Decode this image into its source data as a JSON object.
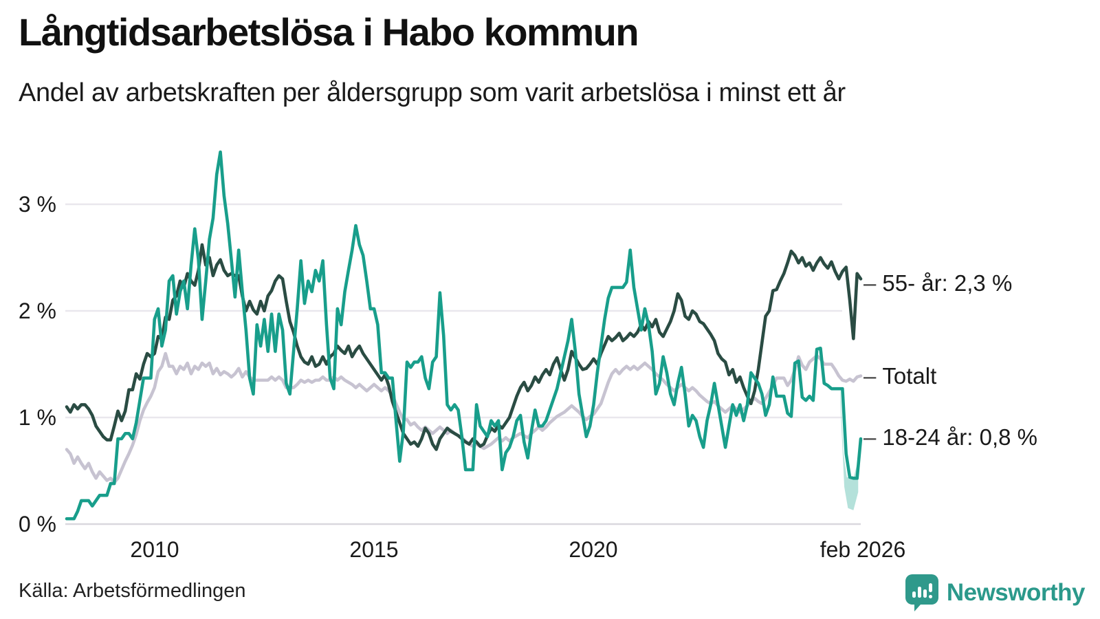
{
  "header": {
    "title": "Långtidsarbetslösa i Habo kommun",
    "subtitle": "Andel av arbetskraften per åldersgrupp som varit arbetslösa i minst ett år"
  },
  "source_note": "Källa: Arbetsförmedlingen",
  "branding": {
    "wordmark": "Newsworthy",
    "icon": "speech-bubble-bar-chart-icon",
    "color": "#2b998b"
  },
  "colors": {
    "series_55": "#2a4c43",
    "series_total": "#c7c3d1",
    "series_1824": "#189e8b",
    "uncertainty_band": "#a7dcd3",
    "gridline": "#e9e7ed",
    "axisline": "#d9d7de",
    "text": "#1a1a1a"
  },
  "annotations_right": [
    {
      "dash": "–",
      "label": "55- år: 2,3 %"
    },
    {
      "dash": "–",
      "label": "Totalt"
    },
    {
      "dash": "–",
      "label": "18-24 år: 0,8 %"
    }
  ],
  "chart_data": {
    "type": "line",
    "title": "Långtidsarbetslösa i Habo kommun",
    "subtitle": "Andel av arbetskraften per åldersgrupp som varit arbetslösa i minst ett år",
    "x_unit": "month",
    "x_range": [
      "jan 2008",
      "feb 2026"
    ],
    "n_points": 218,
    "ylim": [
      0,
      3.6
    ],
    "grid": "horizontal",
    "legend_position": "right-edge-labels",
    "yticks": [
      {
        "label": "0 %",
        "value": 0
      },
      {
        "label": "1 %",
        "value": 1
      },
      {
        "label": "2 %",
        "value": 2
      },
      {
        "label": "3 %",
        "value": 3
      }
    ],
    "xticks": [
      {
        "label": "2010",
        "index": 24
      },
      {
        "label": "2015",
        "index": 84
      },
      {
        "label": "2020",
        "index": 144
      },
      {
        "label": "feb 2026",
        "index": 217
      }
    ],
    "series": [
      {
        "name": "55- år",
        "color": "#2a4c43",
        "end_label": "55- år: 2,3 %",
        "end_value": 2.3,
        "values": [
          1.1,
          1.05,
          1.12,
          1.08,
          1.12,
          1.12,
          1.08,
          1.02,
          0.92,
          0.87,
          0.82,
          0.79,
          0.79,
          0.92,
          1.06,
          0.97,
          1.06,
          1.26,
          1.26,
          1.41,
          1.36,
          1.5,
          1.6,
          1.57,
          1.6,
          1.76,
          1.74,
          1.94,
          1.92,
          2.1,
          2.14,
          2.28,
          2.22,
          2.35,
          2.28,
          2.24,
          2.38,
          2.62,
          2.43,
          2.5,
          2.33,
          2.43,
          2.48,
          2.38,
          2.33,
          2.35,
          2.33,
          2.33,
          2.14,
          2.0,
          2.09,
          2.01,
          1.97,
          2.09,
          2.0,
          2.14,
          2.19,
          2.28,
          2.33,
          2.3,
          2.09,
          1.9,
          1.8,
          1.67,
          1.57,
          1.52,
          1.5,
          1.57,
          1.48,
          1.5,
          1.57,
          1.5,
          1.57,
          1.6,
          1.67,
          1.63,
          1.6,
          1.67,
          1.57,
          1.63,
          1.67,
          1.6,
          1.55,
          1.5,
          1.45,
          1.4,
          1.35,
          1.4,
          1.3,
          1.15,
          1.05,
          0.95,
          0.85,
          0.8,
          0.75,
          0.77,
          0.73,
          0.8,
          0.9,
          0.85,
          0.75,
          0.7,
          0.8,
          0.85,
          0.9,
          0.87,
          0.85,
          0.83,
          0.8,
          0.77,
          0.75,
          0.8,
          0.77,
          0.73,
          0.75,
          0.83,
          0.9,
          0.87,
          0.93,
          0.9,
          0.95,
          1.0,
          1.1,
          1.2,
          1.28,
          1.33,
          1.25,
          1.3,
          1.38,
          1.33,
          1.4,
          1.45,
          1.4,
          1.5,
          1.56,
          1.45,
          1.35,
          1.45,
          1.62,
          1.56,
          1.5,
          1.45,
          1.46,
          1.5,
          1.55,
          1.5,
          1.6,
          1.68,
          1.76,
          1.72,
          1.75,
          1.79,
          1.72,
          1.75,
          1.79,
          1.76,
          1.8,
          1.87,
          1.82,
          1.9,
          1.85,
          1.92,
          1.8,
          1.76,
          1.83,
          1.9,
          2.0,
          2.16,
          2.1,
          1.95,
          1.92,
          2.0,
          1.97,
          1.9,
          1.88,
          1.83,
          1.78,
          1.72,
          1.6,
          1.55,
          1.52,
          1.4,
          1.45,
          1.33,
          1.38,
          1.28,
          1.2,
          1.13,
          1.25,
          1.45,
          1.7,
          1.95,
          2.0,
          2.19,
          2.2,
          2.28,
          2.35,
          2.45,
          2.56,
          2.52,
          2.45,
          2.5,
          2.42,
          2.45,
          2.38,
          2.45,
          2.5,
          2.44,
          2.4,
          2.46,
          2.37,
          2.3,
          2.37,
          2.41,
          2.1,
          1.74,
          2.35,
          2.3
        ]
      },
      {
        "name": "Totalt",
        "color": "#c7c3d1",
        "end_label": "Totalt",
        "end_value": 1.4,
        "values": [
          0.7,
          0.66,
          0.57,
          0.63,
          0.57,
          0.52,
          0.57,
          0.49,
          0.43,
          0.49,
          0.45,
          0.41,
          0.43,
          0.39,
          0.43,
          0.51,
          0.59,
          0.66,
          0.74,
          0.84,
          0.97,
          1.07,
          1.14,
          1.2,
          1.28,
          1.43,
          1.48,
          1.6,
          1.48,
          1.48,
          1.41,
          1.48,
          1.45,
          1.51,
          1.41,
          1.48,
          1.45,
          1.51,
          1.48,
          1.51,
          1.41,
          1.46,
          1.4,
          1.43,
          1.41,
          1.38,
          1.41,
          1.46,
          1.38,
          1.43,
          1.38,
          1.35,
          1.35,
          1.35,
          1.35,
          1.35,
          1.38,
          1.35,
          1.38,
          1.35,
          1.28,
          1.28,
          1.28,
          1.31,
          1.35,
          1.33,
          1.35,
          1.33,
          1.35,
          1.35,
          1.38,
          1.35,
          1.35,
          1.38,
          1.35,
          1.38,
          1.35,
          1.33,
          1.31,
          1.28,
          1.31,
          1.28,
          1.25,
          1.28,
          1.31,
          1.28,
          1.25,
          1.28,
          1.25,
          1.21,
          1.13,
          1.05,
          0.98,
          0.98,
          0.93,
          0.95,
          0.91,
          0.88,
          0.91,
          0.88,
          0.85,
          0.88,
          0.91,
          0.88,
          0.85,
          0.88,
          0.85,
          0.83,
          0.81,
          0.78,
          0.75,
          0.73,
          0.75,
          0.73,
          0.71,
          0.73,
          0.75,
          0.78,
          0.81,
          0.78,
          0.81,
          0.78,
          0.81,
          0.83,
          0.85,
          0.83,
          0.81,
          0.85,
          0.88,
          0.91,
          0.88,
          0.91,
          0.95,
          0.98,
          1.01,
          1.03,
          1.05,
          1.08,
          1.11,
          1.08,
          1.05,
          1.01,
          0.98,
          1.01,
          1.03,
          1.08,
          1.13,
          1.23,
          1.33,
          1.41,
          1.45,
          1.41,
          1.45,
          1.48,
          1.45,
          1.48,
          1.45,
          1.48,
          1.51,
          1.48,
          1.45,
          1.41,
          1.38,
          1.35,
          1.31,
          1.28,
          1.25,
          1.28,
          1.31,
          1.28,
          1.25,
          1.28,
          1.25,
          1.21,
          1.18,
          1.15,
          1.13,
          1.15,
          1.11,
          1.08,
          1.05,
          1.08,
          1.11,
          1.08,
          1.05,
          1.08,
          1.11,
          1.15,
          1.18,
          1.15,
          1.13,
          1.18,
          1.24,
          1.3,
          1.37,
          1.37,
          1.37,
          1.3,
          1.35,
          1.45,
          1.57,
          1.49,
          1.45,
          1.52,
          1.55,
          1.58,
          1.55,
          1.5,
          1.5,
          1.5,
          1.45,
          1.39,
          1.35,
          1.34,
          1.36,
          1.34,
          1.38,
          1.39
        ]
      },
      {
        "name": "18-24 år",
        "color": "#189e8b",
        "end_label": "18-24 år: 0,8 %",
        "end_value": 0.8,
        "values": [
          0.05,
          0.05,
          0.05,
          0.12,
          0.22,
          0.22,
          0.22,
          0.17,
          0.22,
          0.27,
          0.27,
          0.27,
          0.38,
          0.38,
          0.8,
          0.8,
          0.85,
          0.85,
          0.8,
          0.95,
          1.16,
          1.37,
          1.37,
          1.37,
          1.92,
          2.02,
          1.67,
          1.82,
          2.28,
          2.33,
          1.97,
          2.18,
          2.28,
          2.02,
          2.43,
          2.77,
          2.48,
          1.92,
          2.28,
          2.67,
          2.87,
          3.28,
          3.49,
          3.08,
          2.82,
          2.48,
          2.13,
          2.57,
          2.18,
          1.82,
          1.37,
          1.22,
          1.87,
          1.67,
          1.92,
          1.62,
          1.97,
          1.62,
          1.97,
          1.82,
          1.32,
          1.22,
          1.62,
          2.02,
          2.47,
          2.07,
          2.28,
          2.18,
          2.38,
          2.28,
          2.47,
          1.87,
          1.37,
          1.27,
          2.02,
          1.87,
          2.18,
          2.38,
          2.57,
          2.8,
          2.62,
          2.52,
          2.28,
          2.02,
          2.02,
          1.87,
          1.42,
          1.42,
          1.37,
          1.37,
          0.97,
          0.59,
          0.87,
          1.52,
          1.47,
          1.52,
          1.52,
          1.57,
          1.37,
          1.27,
          1.52,
          1.57,
          2.17,
          1.77,
          1.12,
          1.07,
          1.12,
          1.07,
          0.82,
          0.51,
          0.51,
          0.51,
          1.12,
          0.92,
          0.87,
          0.82,
          0.97,
          0.92,
          0.97,
          0.51,
          0.67,
          0.72,
          0.82,
          0.97,
          1.02,
          0.77,
          0.62,
          0.87,
          1.07,
          0.92,
          0.92,
          0.97,
          1.07,
          1.17,
          1.27,
          1.42,
          1.57,
          1.72,
          1.92,
          1.62,
          1.22,
          1.02,
          0.82,
          0.92,
          1.12,
          1.42,
          1.67,
          1.92,
          2.12,
          2.22,
          2.22,
          2.22,
          2.22,
          2.27,
          2.57,
          2.22,
          2.02,
          1.82,
          2.02,
          1.87,
          1.62,
          1.22,
          1.32,
          1.57,
          1.42,
          1.22,
          1.12,
          1.32,
          1.47,
          1.22,
          0.92,
          1.02,
          0.97,
          0.82,
          0.72,
          0.97,
          1.12,
          1.32,
          1.12,
          0.92,
          0.72,
          0.92,
          1.12,
          1.02,
          1.12,
          0.97,
          1.12,
          1.42,
          1.37,
          1.32,
          1.22,
          1.02,
          1.12,
          1.38,
          1.2,
          1.2,
          1.2,
          1.04,
          1.01,
          1.51,
          1.53,
          1.19,
          1.16,
          1.2,
          1.16,
          1.64,
          1.65,
          1.32,
          1.3,
          1.27,
          1.27,
          1.27,
          1.27,
          0.66,
          0.44,
          0.43,
          0.43,
          0.8
        ]
      }
    ],
    "uncertainty_band": {
      "series": "18-24 år",
      "color": "#a7dcd3",
      "upper": [
        [
          211.4,
          1.27
        ],
        [
          212.3,
          0.66
        ],
        [
          213.2,
          0.44
        ],
        [
          215.0,
          0.43
        ],
        [
          216.3,
          0.6
        ]
      ],
      "lower": [
        [
          216.3,
          0.3
        ],
        [
          215.0,
          0.13
        ],
        [
          213.5,
          0.15
        ],
        [
          212.5,
          0.35
        ],
        [
          211.4,
          1.15
        ]
      ]
    }
  }
}
